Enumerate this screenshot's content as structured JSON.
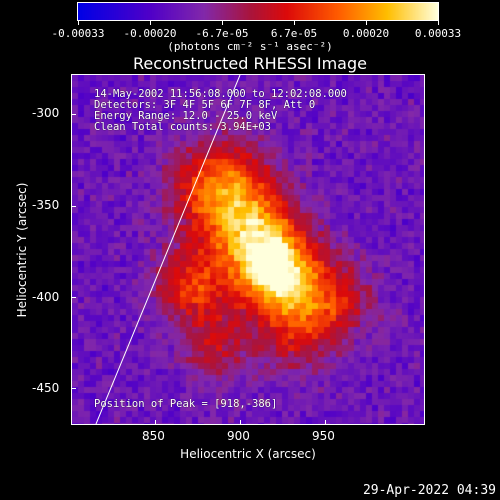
{
  "colorbar": {
    "ticks": [
      "-0.00033",
      "-0.00020",
      "-6.7e-05",
      "6.7e-05",
      "0.00020",
      "0.00033"
    ],
    "units": "(photons cm⁻² s⁻¹ asec⁻²)"
  },
  "plot": {
    "title": "Reconstructed RHESSI Image",
    "info": {
      "time": "14-May-2002 11:56:08.000 to 12:02:08.000",
      "detectors": "Detectors: 3F 4F 5F 6F 7F 8F, Att 0",
      "energy": "Energy Range: 12.0 - 25.0 keV",
      "clean": "Clean    Total counts: 3.94E+03"
    },
    "peak": "Position of Peak = [918,-386]",
    "xlabel": "Heliocentric X (arcsec)",
    "ylabel": "Heliocentric Y (arcsec)",
    "xticks": [
      "850",
      "900",
      "950"
    ],
    "yticks": [
      "-300",
      "-350",
      "-400",
      "-450"
    ],
    "x_range": [
      808,
      1000
    ],
    "y_range": [
      -470,
      -278
    ],
    "peak_x": 918,
    "peak_y": -386
  },
  "footer": {
    "timestamp": "29-Apr-2022 04:39"
  }
}
